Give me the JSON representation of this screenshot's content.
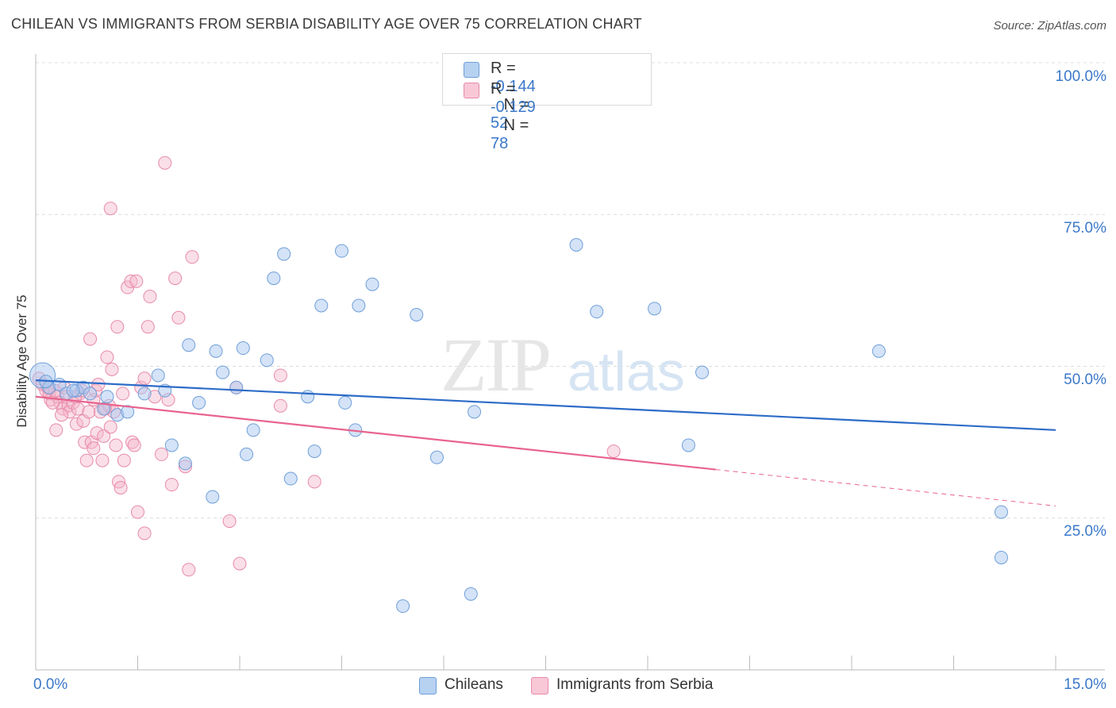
{
  "title": "CHILEAN VS IMMIGRANTS FROM SERBIA DISABILITY AGE OVER 75 CORRELATION CHART",
  "source": "Source: ZipAtlas.com",
  "watermark": "ZIPatlas",
  "legend": {
    "rows": [
      {
        "r_label": "R =",
        "r_value": "-0.144",
        "n_label": "N =",
        "n_value": "52"
      },
      {
        "r_label": "R =",
        "r_value": "-0.129",
        "n_label": "N =",
        "n_value": "78"
      }
    ]
  },
  "colors": {
    "blue_fill": "#a9c8ef",
    "blue_stroke": "#6f9fd8",
    "blue_line": "#2d6cc8",
    "pink_fill": "#f5b8cb",
    "pink_stroke": "#e88aaa",
    "pink_line": "#e8648f",
    "axis_text": "#3b78c9",
    "grid": "#dddddd"
  },
  "chart_data": {
    "type": "scatter",
    "title": "CHILEAN VS IMMIGRANTS FROM SERBIA DISABILITY AGE OVER 75 CORRELATION CHART",
    "xlabel": "",
    "ylabel": "Disability Age Over 75",
    "xlim": [
      0,
      15
    ],
    "ylim": [
      0,
      100
    ],
    "x_tick_labels": [
      "0.0%",
      "15.0%"
    ],
    "y_tick_labels": [
      "100.0%",
      "75.0%",
      "50.0%",
      "25.0%"
    ],
    "y_ticks": [
      100,
      75,
      50,
      25
    ],
    "grid": true,
    "legend_position": "top-center",
    "series": [
      {
        "name": "Chileans",
        "color": "#a9c8ef",
        "r": -0.144,
        "n": 52,
        "trend": {
          "x0": 0,
          "y0": 47.7,
          "x1": 15,
          "y1": 39.5,
          "dashed_from": null
        },
        "points": [
          [
            0.1,
            48.5
          ],
          [
            0.2,
            46.5
          ],
          [
            0.35,
            47.0
          ],
          [
            0.45,
            45.5
          ],
          [
            0.6,
            46.0
          ],
          [
            0.7,
            46.5
          ],
          [
            0.8,
            45.5
          ],
          [
            1.0,
            43.0
          ],
          [
            1.05,
            45.0
          ],
          [
            1.2,
            42.0
          ],
          [
            1.35,
            42.5
          ],
          [
            1.6,
            45.5
          ],
          [
            1.8,
            48.5
          ],
          [
            1.9,
            46.0
          ],
          [
            2.0,
            37.0
          ],
          [
            2.2,
            34.0
          ],
          [
            2.4,
            44.0
          ],
          [
            2.25,
            53.5
          ],
          [
            2.6,
            28.5
          ],
          [
            2.65,
            52.5
          ],
          [
            2.75,
            49.0
          ],
          [
            2.95,
            46.5
          ],
          [
            3.05,
            53.0
          ],
          [
            3.1,
            35.5
          ],
          [
            3.2,
            39.5
          ],
          [
            3.4,
            51.0
          ],
          [
            3.5,
            64.5
          ],
          [
            3.65,
            68.5
          ],
          [
            3.75,
            31.5
          ],
          [
            4.0,
            45.0
          ],
          [
            4.1,
            36.0
          ],
          [
            4.2,
            60.0
          ],
          [
            4.5,
            69.0
          ],
          [
            4.55,
            44.0
          ],
          [
            4.7,
            39.5
          ],
          [
            4.75,
            60.0
          ],
          [
            4.95,
            63.5
          ],
          [
            5.4,
            10.5
          ],
          [
            5.6,
            58.5
          ],
          [
            5.9,
            35.0
          ],
          [
            6.4,
            12.5
          ],
          [
            6.45,
            42.5
          ],
          [
            7.95,
            70.0
          ],
          [
            8.25,
            59.0
          ],
          [
            9.1,
            59.5
          ],
          [
            9.6,
            37.0
          ],
          [
            9.8,
            49.0
          ],
          [
            12.4,
            52.5
          ],
          [
            14.2,
            18.5
          ],
          [
            14.2,
            26.0
          ],
          [
            0.15,
            47.5
          ],
          [
            0.55,
            46.0
          ]
        ]
      },
      {
        "name": "Immigrants from Serbia",
        "color": "#f5b8cb",
        "r": -0.129,
        "n": 78,
        "trend": {
          "x0": 0,
          "y0": 45.0,
          "x1": 10.0,
          "y1": 33.0,
          "dashed_from": 10.0,
          "x2": 15,
          "y2": 27.0
        },
        "points": [
          [
            0.05,
            48.0
          ],
          [
            0.1,
            47.0
          ],
          [
            0.15,
            46.0
          ],
          [
            0.2,
            45.5
          ],
          [
            0.22,
            44.5
          ],
          [
            0.28,
            46.0
          ],
          [
            0.3,
            39.5
          ],
          [
            0.32,
            45.0
          ],
          [
            0.36,
            44.0
          ],
          [
            0.4,
            43.0
          ],
          [
            0.42,
            46.5
          ],
          [
            0.45,
            45.0
          ],
          [
            0.48,
            43.5
          ],
          [
            0.5,
            42.5
          ],
          [
            0.55,
            44.0
          ],
          [
            0.6,
            40.5
          ],
          [
            0.62,
            43.0
          ],
          [
            0.65,
            45.5
          ],
          [
            0.7,
            41.0
          ],
          [
            0.72,
            37.5
          ],
          [
            0.75,
            34.5
          ],
          [
            0.78,
            42.5
          ],
          [
            0.8,
            54.5
          ],
          [
            0.82,
            37.5
          ],
          [
            0.85,
            44.5
          ],
          [
            0.88,
            46.0
          ],
          [
            0.9,
            39.0
          ],
          [
            0.92,
            47.0
          ],
          [
            0.95,
            42.5
          ],
          [
            0.98,
            34.5
          ],
          [
            1.0,
            38.5
          ],
          [
            1.05,
            51.5
          ],
          [
            1.08,
            43.5
          ],
          [
            1.1,
            40.0
          ],
          [
            1.12,
            49.5
          ],
          [
            1.15,
            42.5
          ],
          [
            1.18,
            37.0
          ],
          [
            1.2,
            56.5
          ],
          [
            1.22,
            31.0
          ],
          [
            1.25,
            30.0
          ],
          [
            1.3,
            34.5
          ],
          [
            1.35,
            63.0
          ],
          [
            1.4,
            64.0
          ],
          [
            1.42,
            37.5
          ],
          [
            1.45,
            37.0
          ],
          [
            1.5,
            26.0
          ],
          [
            1.55,
            46.5
          ],
          [
            1.6,
            22.5
          ],
          [
            1.65,
            56.5
          ],
          [
            1.68,
            61.5
          ],
          [
            1.75,
            45.0
          ],
          [
            1.85,
            35.5
          ],
          [
            1.95,
            44.5
          ],
          [
            2.05,
            64.5
          ],
          [
            2.1,
            58.0
          ],
          [
            2.2,
            33.5
          ],
          [
            2.25,
            16.5
          ],
          [
            2.3,
            68.0
          ],
          [
            2.85,
            24.5
          ],
          [
            2.95,
            46.5
          ],
          [
            3.0,
            17.5
          ],
          [
            3.6,
            43.5
          ],
          [
            3.6,
            48.5
          ],
          [
            4.1,
            31.0
          ],
          [
            8.5,
            36.0
          ],
          [
            1.1,
            76.0
          ],
          [
            1.9,
            83.5
          ],
          [
            0.58,
            45.0
          ],
          [
            0.68,
            46.0
          ],
          [
            1.48,
            64.0
          ],
          [
            2.0,
            30.5
          ],
          [
            0.38,
            42.0
          ],
          [
            1.28,
            45.5
          ],
          [
            0.25,
            44.0
          ],
          [
            1.6,
            48.0
          ],
          [
            0.85,
            36.5
          ],
          [
            0.18,
            46.5
          ],
          [
            1.02,
            43.0
          ]
        ]
      }
    ]
  }
}
